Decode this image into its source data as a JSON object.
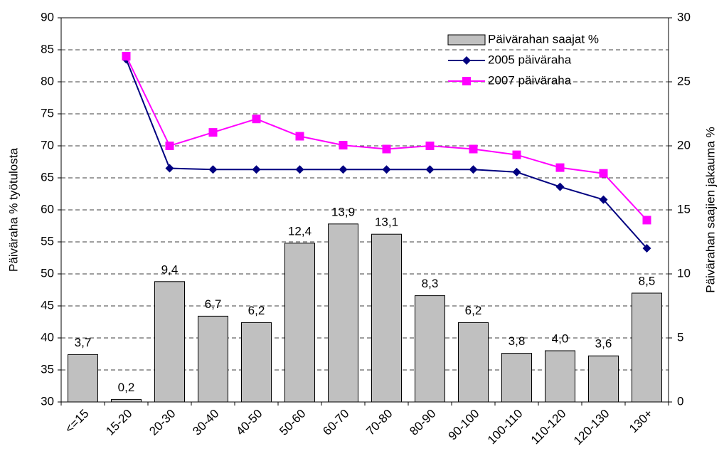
{
  "chart_data": {
    "type": "bar",
    "categories": [
      "<=15",
      "15-20",
      "20-30",
      "30-40",
      "40-50",
      "50-60",
      "60-70",
      "70-80",
      "80-90",
      "90-100",
      "100-110",
      "110-120",
      "120-130",
      "130+"
    ],
    "ylabel": "Päiväraha % työtulosta",
    "y2label": "Päivärahan saajien jakauma %",
    "ylim": [
      30,
      90
    ],
    "yticks": [
      30,
      35,
      40,
      45,
      50,
      55,
      60,
      65,
      70,
      75,
      80,
      85,
      90
    ],
    "y2lim": [
      0,
      30
    ],
    "y2ticks": [
      0,
      5,
      10,
      15,
      20,
      25,
      30
    ],
    "grid": true,
    "legend": "top-right",
    "series": [
      {
        "name": "Päivärahan saajat %",
        "type": "bar",
        "axis": "y2",
        "color": "#c0c0c0",
        "values": [
          3.7,
          0.2,
          9.4,
          6.7,
          6.2,
          12.4,
          13.9,
          13.1,
          8.3,
          6.2,
          3.8,
          4.0,
          3.6,
          8.5
        ],
        "value_labels": [
          "3,7",
          "0,2",
          "9,4",
          "6,7",
          "6,2",
          "12,4",
          "13,9",
          "13,1",
          "8,3",
          "6,2",
          "3,8",
          "4,0",
          "3,6",
          "8,5"
        ]
      },
      {
        "name": "2005 päiväraha",
        "type": "line",
        "marker": "diamond",
        "color": "#000080",
        "values": [
          null,
          83.5,
          66.5,
          66.3,
          66.3,
          66.3,
          66.3,
          66.3,
          66.3,
          66.3,
          65.9,
          63.6,
          61.6,
          54.0
        ]
      },
      {
        "name": "2007 päiväraha",
        "type": "line",
        "marker": "square",
        "color": "#ff00ff",
        "values": [
          null,
          84.0,
          70.0,
          72.1,
          74.2,
          71.5,
          70.1,
          69.5,
          70.0,
          69.5,
          68.6,
          66.6,
          65.7,
          58.4
        ]
      }
    ]
  }
}
